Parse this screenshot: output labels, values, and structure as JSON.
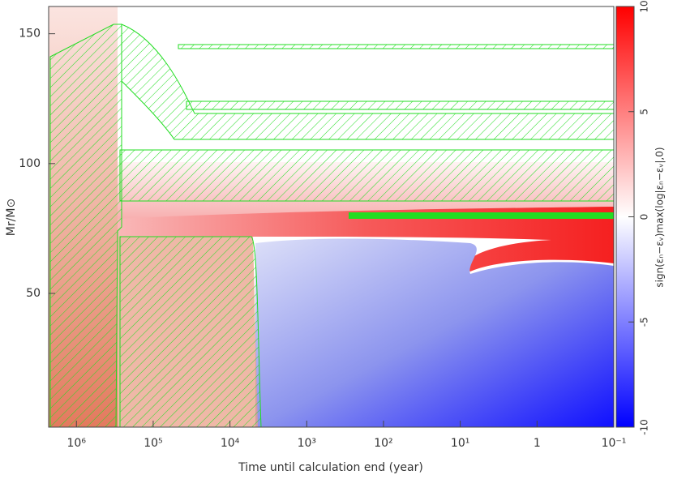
{
  "chart_data": {
    "type": "kippenhahn",
    "x_label": "Time until calculation end (year)",
    "y_label": "Mr/M⊙",
    "xlim": [
      2300000,
      0.1
    ],
    "xscale": "log",
    "xticks": [
      {
        "value": 1000000,
        "label": "10⁶"
      },
      {
        "value": 100000,
        "label": "10⁵"
      },
      {
        "value": 10000,
        "label": "10⁴"
      },
      {
        "value": 1000,
        "label": "10³"
      },
      {
        "value": 100,
        "label": "10²"
      },
      {
        "value": 10,
        "label": "10¹"
      },
      1,
      {
        "value": 0.1,
        "label": "10⁻¹"
      }
    ],
    "ylim": [
      -1.5,
      160.5
    ],
    "yticks": [
      50,
      100,
      150
    ],
    "colorbar": {
      "label": "sign(εₙ−εᵥ)max(log|εₙ−εᵥ|,0)",
      "lim": [
        -10,
        10
      ],
      "ticks": [
        -10,
        -5,
        0,
        5,
        10
      ],
      "colors": [
        "#0000ff",
        "#ffffff",
        "#ff0000"
      ]
    },
    "hatch_color": "#22dd22"
  }
}
